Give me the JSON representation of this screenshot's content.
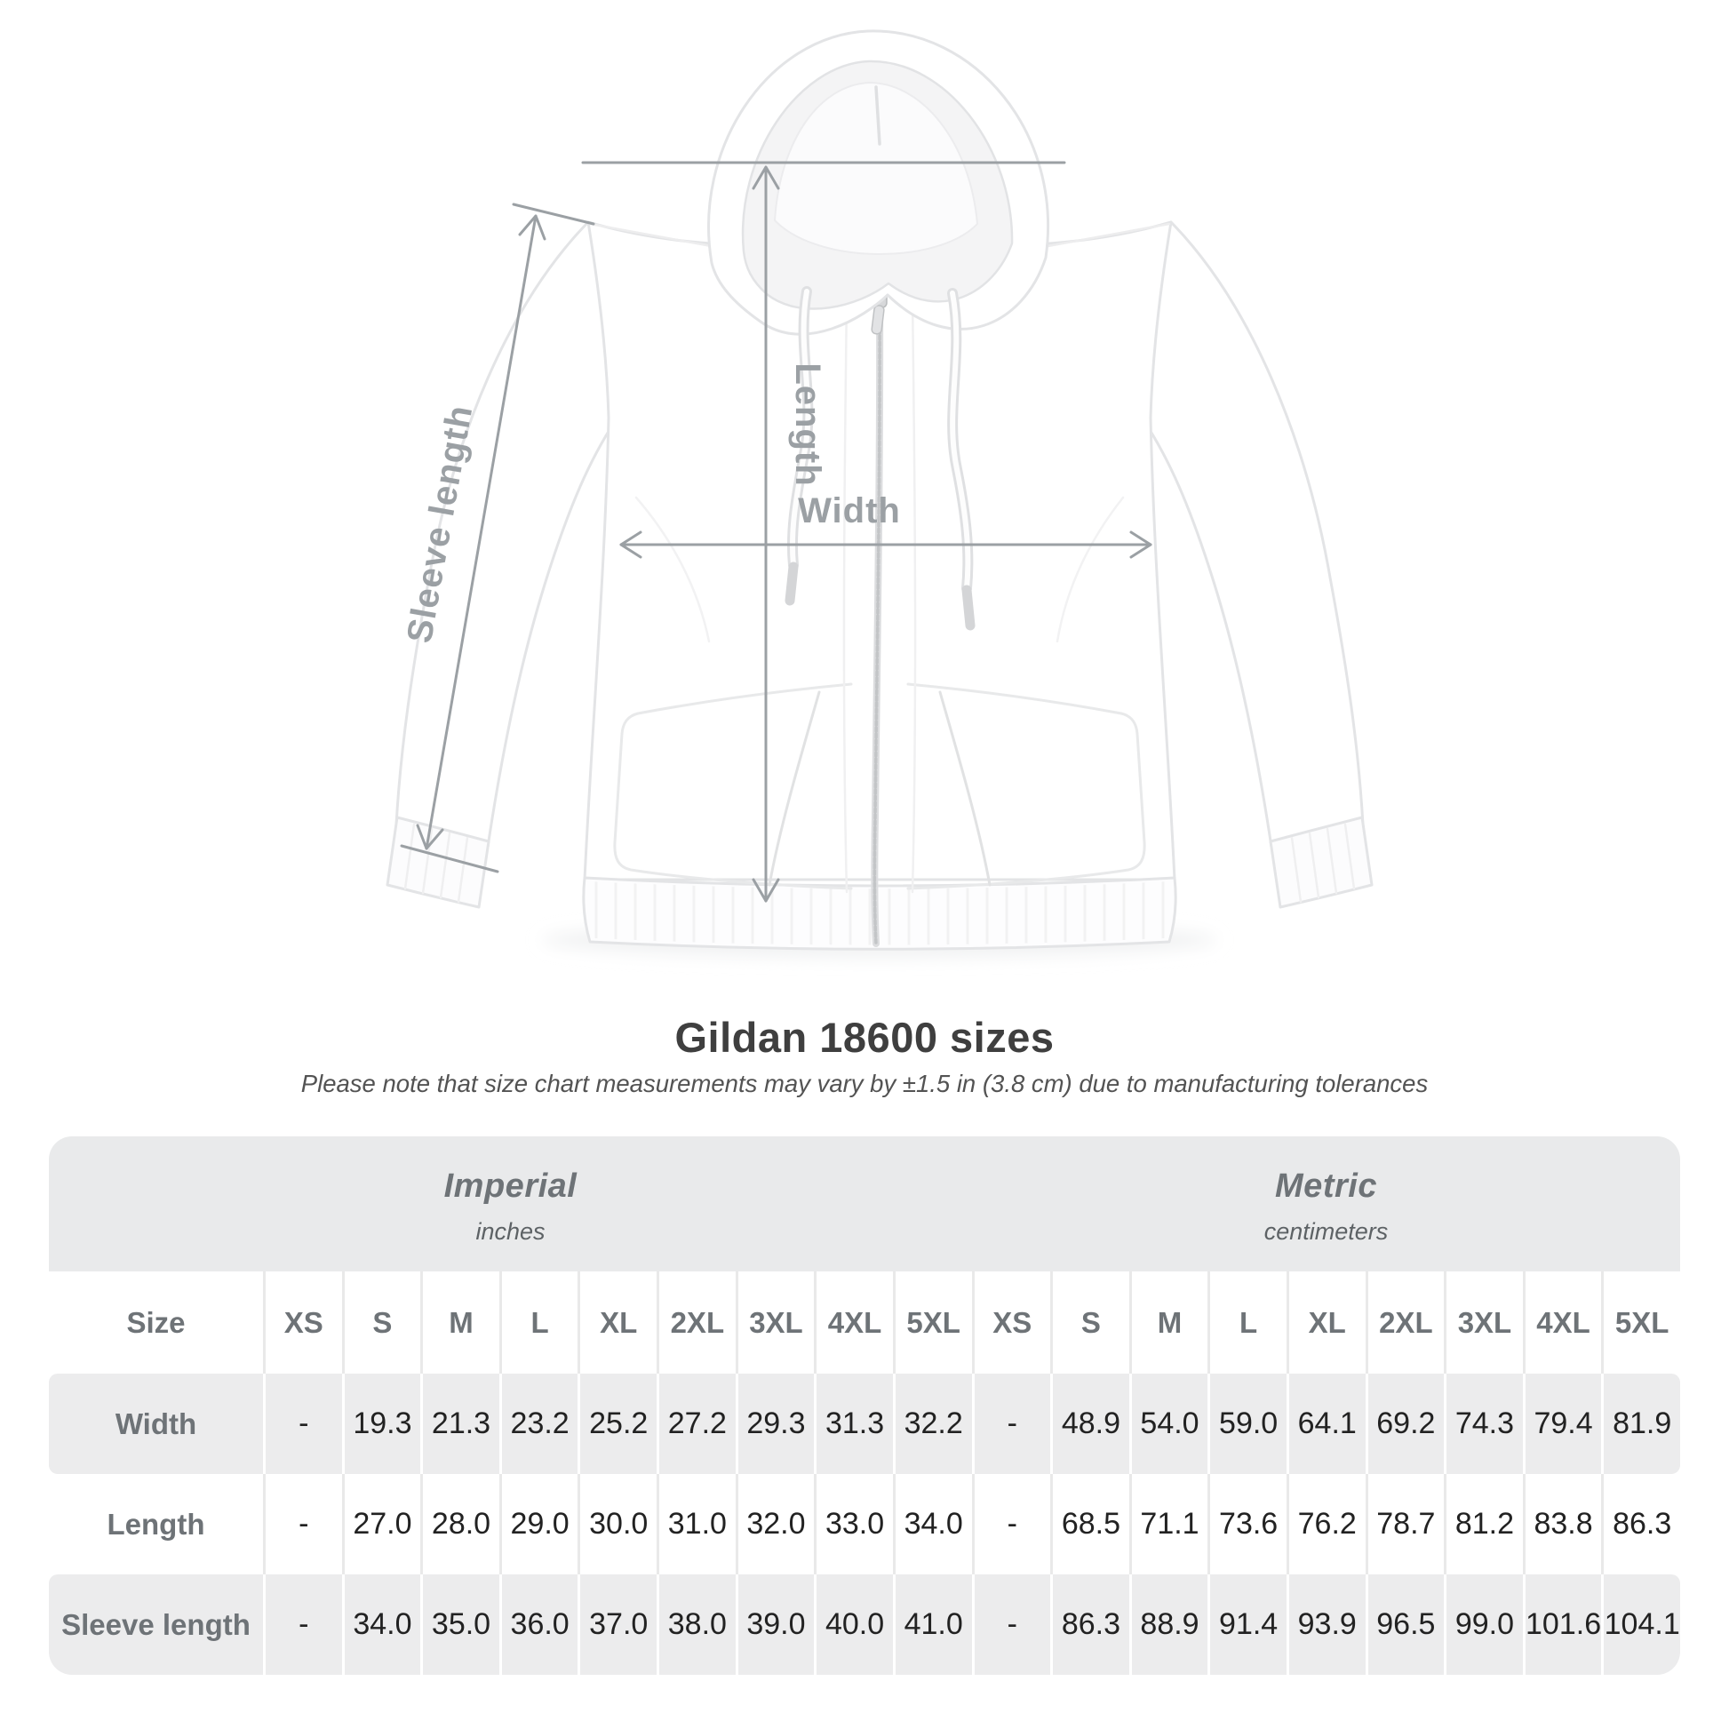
{
  "page": {
    "title": "Gildan 18600 sizes",
    "subtitle": "Please note that size chart measurements may vary by ±1.5 in (3.8 cm) due to manufacturing tolerances"
  },
  "diagram": {
    "labels": {
      "length": "Length",
      "width": "Width",
      "sleeve": "Sleeve length"
    }
  },
  "table": {
    "corner_label": "Size",
    "groups": [
      {
        "name": "Imperial",
        "unit": "inches"
      },
      {
        "name": "Metric",
        "unit": "centimeters"
      }
    ],
    "sizes": [
      "XS",
      "S",
      "M",
      "L",
      "XL",
      "2XL",
      "3XL",
      "4XL",
      "5XL"
    ],
    "rows": [
      {
        "label": "Width",
        "imperial": [
          "-",
          "19.3",
          "21.3",
          "23.2",
          "25.2",
          "27.2",
          "29.3",
          "31.3",
          "32.2"
        ],
        "metric": [
          "-",
          "48.9",
          "54.0",
          "59.0",
          "64.1",
          "69.2",
          "74.3",
          "79.4",
          "81.9"
        ]
      },
      {
        "label": "Length",
        "imperial": [
          "-",
          "27.0",
          "28.0",
          "29.0",
          "30.0",
          "31.0",
          "32.0",
          "33.0",
          "34.0"
        ],
        "metric": [
          "-",
          "68.5",
          "71.1",
          "73.6",
          "76.2",
          "78.7",
          "81.2",
          "83.8",
          "86.3"
        ]
      },
      {
        "label": "Sleeve length",
        "imperial": [
          "-",
          "34.0",
          "35.0",
          "36.0",
          "37.0",
          "38.0",
          "39.0",
          "40.0",
          "41.0"
        ],
        "metric": [
          "-",
          "86.3",
          "88.9",
          "91.4",
          "93.9",
          "96.5",
          "99.0",
          "101.6",
          "104.1"
        ]
      }
    ]
  },
  "colors": {
    "annotation": "#9ba0a4",
    "band_bg": "#e9eaeb",
    "alt_row_bg": "#ececed",
    "header_text": "#6e7377",
    "value_text": "#222222"
  }
}
